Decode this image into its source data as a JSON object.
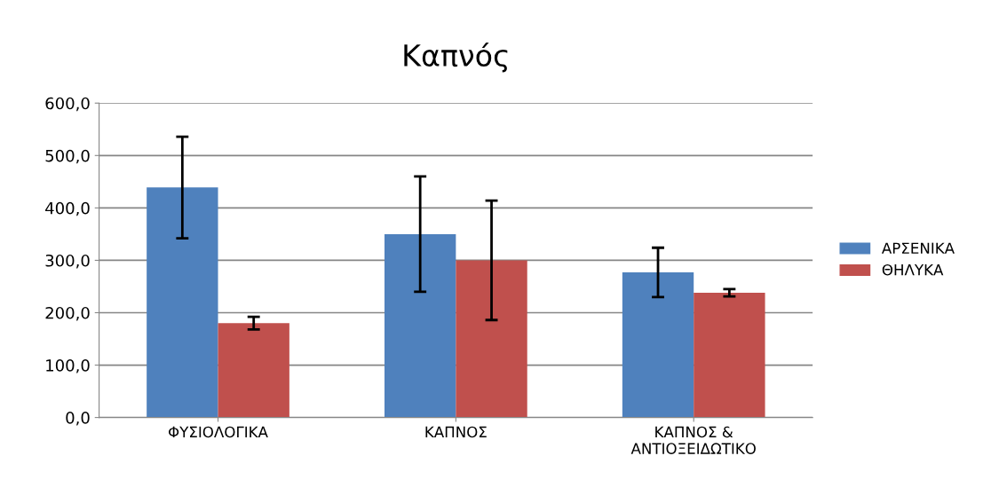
{
  "chart_data": {
    "type": "bar",
    "title": "Καπνός",
    "categories": [
      "ΦΥΣΙΟΛΟΓΙΚΑ",
      "ΚΑΠΝΟΣ",
      "ΚΑΠΝΟΣ &\nΑΝΤΙΟΞΕΙΔΩΤΙΚΟ"
    ],
    "series": [
      {
        "name": "ΑΡΣΕΝΙΚΑ",
        "color": "#4f81bd",
        "values": [
          439,
          350,
          277
        ],
        "errors": [
          97,
          110,
          47
        ]
      },
      {
        "name": "ΘΗΛΥΚΑ",
        "color": "#c0504d",
        "values": [
          180,
          300,
          238
        ],
        "errors": [
          12,
          114,
          7
        ]
      }
    ],
    "ylim": [
      0,
      600
    ],
    "yticks": [
      {
        "value": 0,
        "label": "0,0"
      },
      {
        "value": 100,
        "label": "100,0"
      },
      {
        "value": 200,
        "label": "200,0"
      },
      {
        "value": 300,
        "label": "300,0"
      },
      {
        "value": 400,
        "label": "400,0"
      },
      {
        "value": 500,
        "label": "500,0"
      },
      {
        "value": 600,
        "label": "600,0"
      }
    ],
    "grid": "y",
    "legend": "right"
  }
}
